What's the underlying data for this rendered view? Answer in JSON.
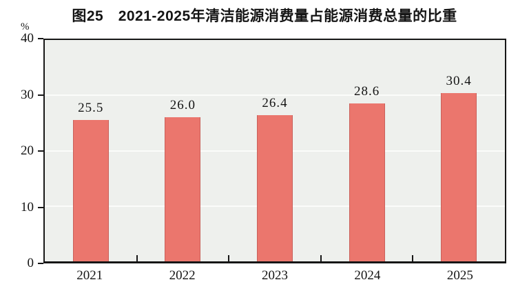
{
  "title": "图25　2021-2025年清洁能源消费量占能源消费总量的比重",
  "y_axis": {
    "unit": "%",
    "ticks": [
      0,
      10,
      20,
      30,
      40
    ]
  },
  "chart_data": {
    "type": "bar",
    "title": "图25　2021-2025年清洁能源消费量占能源消费总量的比重",
    "categories": [
      "2021",
      "2022",
      "2023",
      "2024",
      "2025"
    ],
    "values": [
      25.5,
      26.0,
      26.4,
      28.6,
      30.4
    ],
    "value_labels": [
      "25.5",
      "26.0",
      "26.4",
      "28.6",
      "30.4"
    ],
    "xlabel": "",
    "ylabel": "%",
    "ylim": [
      0,
      40
    ],
    "yticks": [
      0,
      10,
      20,
      30,
      40
    ],
    "grid": true,
    "legend": "none",
    "colors": {
      "bar_fill": "#EB766D",
      "bar_edge": "#C9605A",
      "plot_background": "#EEF0ED",
      "gridline": "#FBFCFA",
      "axis_frame": "#161616",
      "text": "#141414",
      "page_background": "#FFFFFF"
    }
  }
}
